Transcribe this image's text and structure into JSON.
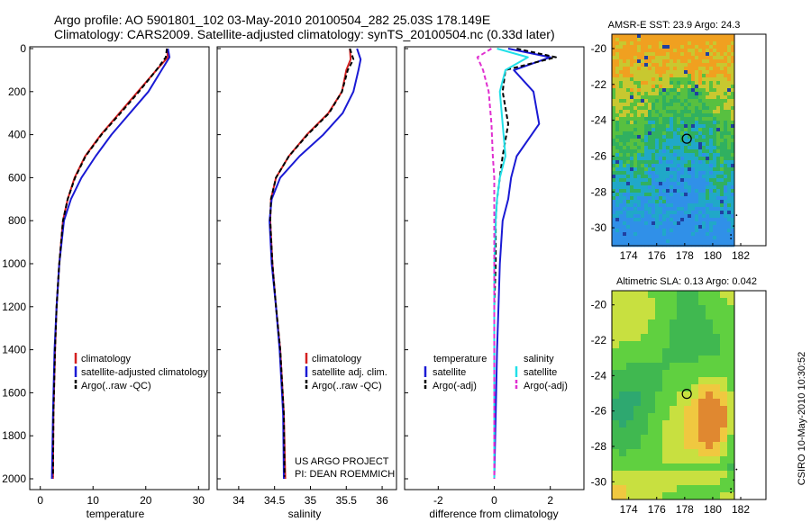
{
  "header": {
    "line1": "Argo profile: AO 5901801_102 03-May-2010 20100504_282 25.03S 178.149E",
    "line2": "Climatology: CARS2009. Satellite-adjusted climatology: synTS_20100504.nc (0.33d later)"
  },
  "credits": {
    "project": "US ARGO PROJECT",
    "pi": "PI: DEAN ROEMMICH",
    "side": "CSIRO 10-May-2010 10:30:52"
  },
  "colors": {
    "climatology": "#d42020",
    "satellite": "#1a1ad4",
    "argo": "#000000",
    "salinity_sat": "#22e0e8",
    "salinity_argo": "#e030d0"
  },
  "chart_data": [
    {
      "type": "line",
      "xlabel": "temperature",
      "ylabel": "",
      "xlim": [
        -2,
        32
      ],
      "ylim": [
        2050,
        0
      ],
      "xticks": [
        "0",
        "10",
        "20",
        "30"
      ],
      "yticks": [
        "0",
        "200",
        "400",
        "600",
        "800",
        "1000",
        "1200",
        "1400",
        "1600",
        "1800",
        "2000"
      ],
      "legend": [
        "climatology",
        "satellite-adjusted climatology",
        "Argo(..raw -QC)"
      ],
      "series": [
        {
          "name": "climatology",
          "x": [
            24.0,
            24.2,
            22.0,
            18.5,
            15.0,
            11.5,
            8.5,
            6.5,
            5.2,
            4.3,
            3.6,
            3.1,
            2.8,
            2.5,
            2.4
          ],
          "y": [
            0,
            40,
            100,
            200,
            300,
            400,
            500,
            600,
            700,
            800,
            1000,
            1200,
            1400,
            1700,
            2000
          ]
        },
        {
          "name": "satellite-adjusted climatology",
          "x": [
            24.2,
            24.5,
            23.0,
            20.5,
            17.0,
            13.5,
            10.5,
            7.8,
            5.8,
            4.5,
            3.6,
            3.1,
            2.7,
            2.4,
            2.2
          ],
          "y": [
            0,
            40,
            100,
            200,
            300,
            400,
            500,
            600,
            700,
            800,
            1000,
            1200,
            1400,
            1700,
            2000
          ]
        },
        {
          "name": "Argo(..raw -QC)",
          "x": [
            24.0,
            23.8,
            22.0,
            18.7,
            15.2,
            11.6,
            8.6,
            6.6,
            5.2,
            4.3,
            3.6,
            3.1,
            2.8,
            2.5,
            2.4
          ],
          "y": [
            0,
            40,
            100,
            200,
            300,
            400,
            500,
            600,
            700,
            800,
            1000,
            1200,
            1400,
            1700,
            1990
          ]
        }
      ]
    },
    {
      "type": "line",
      "xlabel": "salinity",
      "xlim": [
        33.7,
        36.2
      ],
      "ylim": [
        2050,
        0
      ],
      "xticks": [
        "34",
        "34.5",
        "35",
        "35.5",
        "36"
      ],
      "legend": [
        "climatology",
        "satellite adj. clim.",
        "Argo(..raw -QC)"
      ],
      "series": [
        {
          "name": "climatology",
          "x": [
            35.55,
            35.56,
            35.5,
            35.44,
            35.25,
            34.95,
            34.7,
            34.52,
            34.45,
            34.44,
            34.47,
            34.52,
            34.58,
            34.63,
            34.65
          ],
          "y": [
            0,
            50,
            100,
            200,
            300,
            400,
            500,
            600,
            700,
            800,
            1000,
            1200,
            1400,
            1700,
            2000
          ]
        },
        {
          "name": "satellite adj. clim.",
          "x": [
            35.65,
            35.7,
            35.67,
            35.6,
            35.45,
            35.18,
            34.85,
            34.58,
            34.46,
            34.43,
            34.46,
            34.52,
            34.57,
            34.62,
            34.63
          ],
          "y": [
            0,
            50,
            100,
            200,
            300,
            400,
            500,
            600,
            700,
            800,
            1000,
            1200,
            1400,
            1700,
            2000
          ]
        },
        {
          "name": "Argo(..raw -QC)",
          "x": [
            35.55,
            35.6,
            35.52,
            35.44,
            35.26,
            34.96,
            34.7,
            34.52,
            34.45,
            34.44,
            34.47,
            34.52,
            34.58,
            34.63,
            34.64
          ],
          "y": [
            0,
            50,
            100,
            200,
            300,
            400,
            500,
            600,
            700,
            800,
            1000,
            1200,
            1400,
            1700,
            1990
          ]
        }
      ]
    },
    {
      "type": "line",
      "xlabel": "difference from climatology",
      "xlim": [
        -3.2,
        3.2
      ],
      "ylim": [
        2050,
        0
      ],
      "xticks": [
        "-2",
        "0",
        "2"
      ],
      "legend_groups": [
        {
          "title": "temperature",
          "entries": [
            "satellite",
            "Argo(-adj)"
          ]
        },
        {
          "title": "salinity",
          "entries": [
            "satellite",
            "Argo(-adj)"
          ]
        }
      ],
      "series": [
        {
          "name": "temperature satellite",
          "x": [
            0.5,
            2.0,
            0.7,
            1.4,
            1.6,
            0.8,
            0.6,
            0.5,
            0.3,
            0.2,
            0.15,
            0.1,
            0.05,
            0.0
          ],
          "y": [
            0,
            40,
            100,
            200,
            350,
            500,
            600,
            700,
            800,
            1000,
            1200,
            1400,
            1700,
            2000
          ]
        },
        {
          "name": "temperature Argo(-adj)",
          "x": [
            0.8,
            2.2,
            0.4,
            0.3,
            0.5,
            0.3,
            0.2,
            0.1,
            0.05,
            0.05,
            0.0,
            0.0,
            0.0,
            0.0
          ],
          "y": [
            0,
            40,
            100,
            200,
            350,
            500,
            600,
            700,
            800,
            1000,
            1200,
            1400,
            1700,
            2000
          ]
        },
        {
          "name": "salinity satellite",
          "x": [
            0.1,
            1.2,
            0.4,
            0.2,
            0.3,
            0.4,
            0.2,
            0.1,
            0.05,
            0.0,
            0.0,
            0.0,
            0.0,
            0.0
          ],
          "y": [
            0,
            40,
            100,
            200,
            350,
            500,
            600,
            700,
            800,
            1000,
            1200,
            1400,
            1700,
            2000
          ]
        },
        {
          "name": "salinity Argo(-adj)",
          "x": [
            -0.1,
            -0.6,
            -0.4,
            -0.2,
            -0.1,
            -0.05,
            0.0,
            0.0,
            0.0,
            0.0,
            0.0,
            0.0,
            0.0,
            0.0
          ],
          "y": [
            0,
            40,
            100,
            200,
            350,
            500,
            600,
            700,
            800,
            1000,
            1200,
            1400,
            1700,
            2000
          ]
        }
      ]
    },
    {
      "type": "heatmap",
      "title": "AMSR-E SST: 23.9 Argo: 24.3",
      "xticks": [
        "174",
        "176",
        "178",
        "180",
        "182"
      ],
      "yticks": [
        "-20",
        "-22",
        "-24",
        "-26",
        "-28",
        "-30"
      ],
      "xlim": [
        172.8,
        183.8
      ],
      "ylim": [
        -31,
        -19.2
      ],
      "marker": {
        "lon": 178.149,
        "lat": -25.03
      }
    },
    {
      "type": "heatmap",
      "title": "Altimetric SLA: 0.13 Argo: 0.042",
      "xticks": [
        "174",
        "176",
        "178",
        "180",
        "182"
      ],
      "yticks": [
        "-20",
        "-22",
        "-24",
        "-26",
        "-28",
        "-30"
      ],
      "xlim": [
        172.8,
        183.8
      ],
      "ylim": [
        -31,
        -19.2
      ],
      "marker": {
        "lon": 178.149,
        "lat": -25.03
      }
    }
  ]
}
